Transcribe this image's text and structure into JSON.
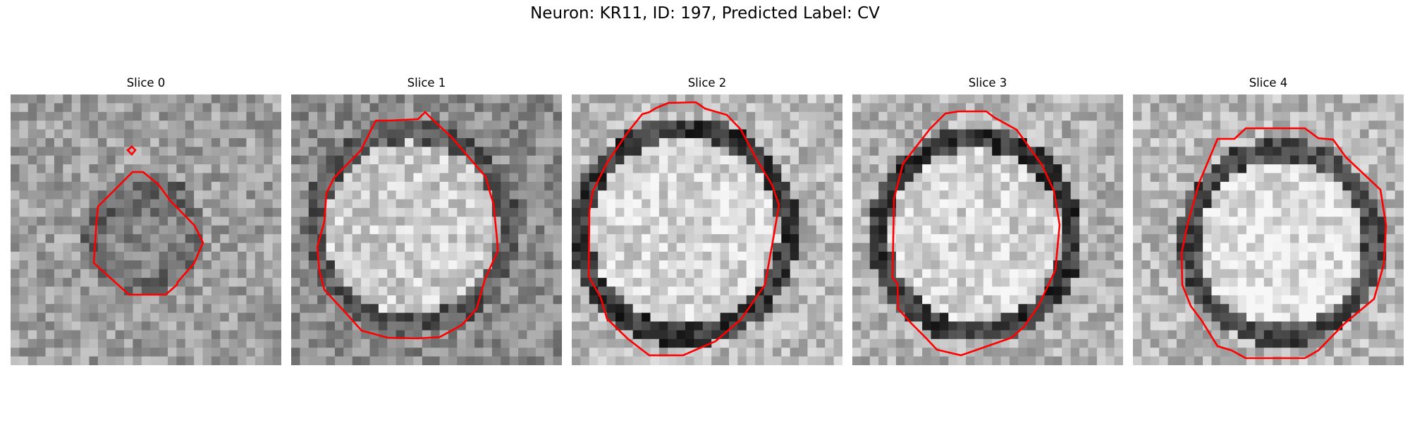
{
  "figure": {
    "title": "Neuron: KR11, ID: 197, Predicted Label: CV"
  },
  "panels": [
    {
      "title": "Slice 0"
    },
    {
      "title": "Slice 1"
    },
    {
      "title": "Slice 2"
    },
    {
      "title": "Slice 3"
    },
    {
      "title": "Slice 4"
    }
  ],
  "colors": {
    "contour": "#ff0000",
    "background": "#ffffff"
  }
}
